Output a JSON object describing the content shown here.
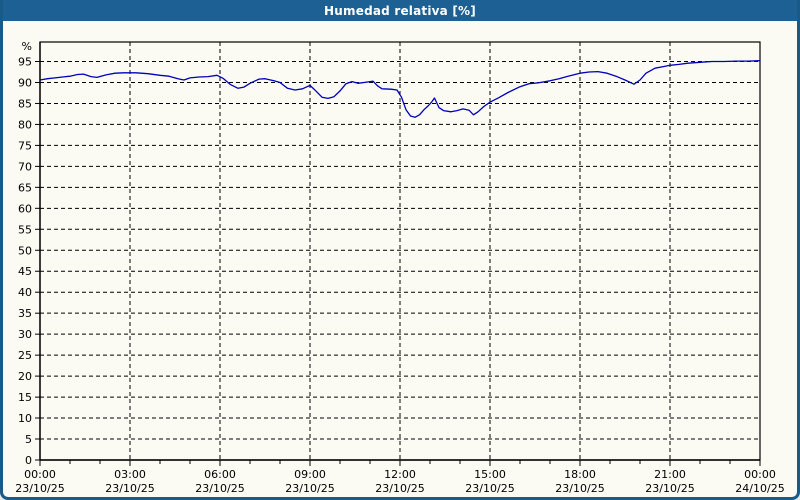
{
  "window": {
    "title": "Humedad relativa [%]"
  },
  "theme": {
    "titlebar_bg": "#1d6093",
    "titlebar_text": "#ffffff",
    "border_color": "#1a5a88",
    "panel_bg": "#fbfbf3",
    "grid_color": "#000000",
    "axis_color": "#000000",
    "label_color": "#000000",
    "line_color": "#0000bb"
  },
  "chart_data": {
    "type": "line",
    "title": "Humedad relativa [%]",
    "ylabel_unit": "%",
    "xlabel": "",
    "ylim": [
      0,
      99.6
    ],
    "xlim_hours": [
      0,
      24
    ],
    "grid": "dashed",
    "legend": "none",
    "y_ticks": [
      95,
      90,
      85,
      80,
      75,
      70,
      65,
      60,
      55,
      50,
      45,
      40,
      35,
      30,
      25,
      20,
      15,
      10,
      5,
      0
    ],
    "x_ticks": [
      {
        "h": 0,
        "time": "00:00",
        "date": "23/10/25"
      },
      {
        "h": 3,
        "time": "03:00",
        "date": "23/10/25"
      },
      {
        "h": 6,
        "time": "06:00",
        "date": "23/10/25"
      },
      {
        "h": 9,
        "time": "09:00",
        "date": "23/10/25"
      },
      {
        "h": 12,
        "time": "12:00",
        "date": "23/10/25"
      },
      {
        "h": 15,
        "time": "15:00",
        "date": "23/10/25"
      },
      {
        "h": 18,
        "time": "18:00",
        "date": "23/10/25"
      },
      {
        "h": 21,
        "time": "21:00",
        "date": "23/10/25"
      },
      {
        "h": 24,
        "time": "00:00",
        "date": "24/10/25"
      }
    ],
    "minor_tick_every_hours": 1,
    "series": [
      {
        "name": "Humedad relativa",
        "color": "#0000bb",
        "points_hour_value": [
          [
            0,
            90.6
          ],
          [
            0.25,
            90.9
          ],
          [
            0.5,
            91.1
          ],
          [
            0.75,
            91.3
          ],
          [
            1,
            91.5
          ],
          [
            1.25,
            91.9
          ],
          [
            1.45,
            92.0
          ],
          [
            1.7,
            91.4
          ],
          [
            1.9,
            91.2
          ],
          [
            2.2,
            91.8
          ],
          [
            2.5,
            92.2
          ],
          [
            2.8,
            92.3
          ],
          [
            3.2,
            92.3
          ],
          [
            3.6,
            92.1
          ],
          [
            4,
            91.7
          ],
          [
            4.3,
            91.5
          ],
          [
            4.6,
            90.9
          ],
          [
            4.8,
            90.6
          ],
          [
            5,
            91.1
          ],
          [
            5.3,
            91.3
          ],
          [
            5.6,
            91.4
          ],
          [
            5.9,
            91.7
          ],
          [
            6.1,
            91.0
          ],
          [
            6.35,
            89.5
          ],
          [
            6.6,
            88.6
          ],
          [
            6.8,
            88.9
          ],
          [
            7,
            89.8
          ],
          [
            7.3,
            90.8
          ],
          [
            7.5,
            90.9
          ],
          [
            7.8,
            90.4
          ],
          [
            8,
            90.0
          ],
          [
            8.25,
            88.6
          ],
          [
            8.5,
            88.2
          ],
          [
            8.75,
            88.5
          ],
          [
            9,
            89.3
          ],
          [
            9.15,
            88.3
          ],
          [
            9.4,
            86.5
          ],
          [
            9.6,
            86.2
          ],
          [
            9.8,
            86.6
          ],
          [
            10,
            88.0
          ],
          [
            10.2,
            89.7
          ],
          [
            10.4,
            90.2
          ],
          [
            10.6,
            89.8
          ],
          [
            10.8,
            90.0
          ],
          [
            11,
            90.2
          ],
          [
            11.1,
            90.3
          ],
          [
            11.25,
            89.2
          ],
          [
            11.4,
            88.5
          ],
          [
            11.7,
            88.4
          ],
          [
            11.9,
            88.2
          ],
          [
            12.05,
            86.5
          ],
          [
            12.2,
            83.5
          ],
          [
            12.35,
            82.0
          ],
          [
            12.5,
            81.7
          ],
          [
            12.65,
            82.3
          ],
          [
            12.8,
            83.5
          ],
          [
            12.95,
            84.5
          ],
          [
            13.05,
            85.3
          ],
          [
            13.15,
            86.3
          ],
          [
            13.3,
            84.0
          ],
          [
            13.45,
            83.3
          ],
          [
            13.7,
            83.0
          ],
          [
            13.9,
            83.3
          ],
          [
            14.1,
            83.7
          ],
          [
            14.3,
            83.4
          ],
          [
            14.45,
            82.3
          ],
          [
            14.6,
            83.0
          ],
          [
            14.8,
            84.3
          ],
          [
            15,
            85.3
          ],
          [
            15.3,
            86.4
          ],
          [
            15.6,
            87.6
          ],
          [
            16,
            89.0
          ],
          [
            16.3,
            89.7
          ],
          [
            16.6,
            89.9
          ],
          [
            17,
            90.4
          ],
          [
            17.3,
            90.9
          ],
          [
            17.6,
            91.5
          ],
          [
            18,
            92.2
          ],
          [
            18.3,
            92.5
          ],
          [
            18.6,
            92.6
          ],
          [
            18.9,
            92.2
          ],
          [
            19.2,
            91.5
          ],
          [
            19.5,
            90.6
          ],
          [
            19.8,
            89.6
          ],
          [
            20,
            90.6
          ],
          [
            20.2,
            92.2
          ],
          [
            20.5,
            93.4
          ],
          [
            20.8,
            93.8
          ],
          [
            21,
            94.1
          ],
          [
            21.3,
            94.3
          ],
          [
            21.6,
            94.6
          ],
          [
            22,
            94.8
          ],
          [
            22.4,
            95.0
          ],
          [
            22.8,
            95.0
          ],
          [
            23.2,
            95.1
          ],
          [
            23.6,
            95.1
          ],
          [
            24,
            95.2
          ]
        ]
      }
    ]
  }
}
